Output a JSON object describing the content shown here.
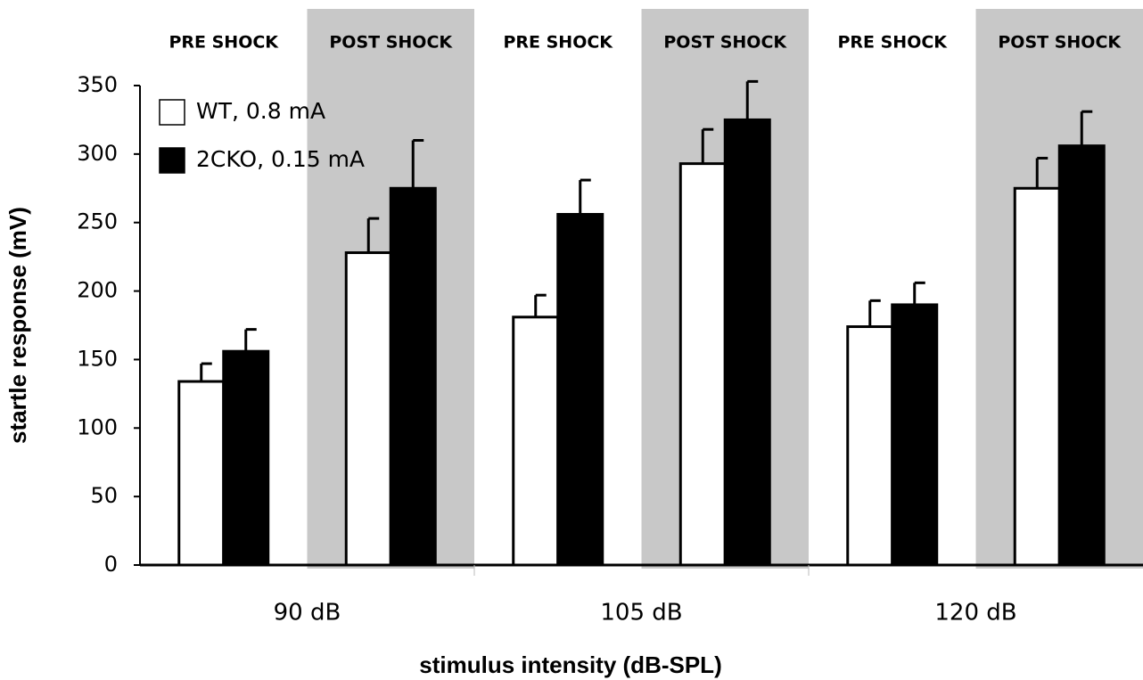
{
  "chart_data": {
    "type": "bar",
    "y_label": "startle response (mV)",
    "x_label": "stimulus intensity (dB-SPL)",
    "groups": [
      "90 dB",
      "105 dB",
      "120 dB"
    ],
    "categories": [
      "PRE SHOCK",
      "POST SHOCK",
      "PRE SHOCK",
      "POST SHOCK",
      "PRE SHOCK",
      "POST SHOCK"
    ],
    "shaded": [
      false,
      true,
      false,
      true,
      false,
      true
    ],
    "shade_color": "#c8c8c8",
    "series": [
      {
        "name": "WT, 0.8 mA",
        "color": "#ffffff",
        "values": [
          134,
          228,
          181,
          293,
          174,
          275
        ],
        "errors": [
          13,
          25,
          16,
          25,
          19,
          22
        ]
      },
      {
        "name": "2CKO, 0.15 mA",
        "color": "#000000",
        "values": [
          156,
          275,
          256,
          325,
          190,
          306
        ],
        "errors": [
          16,
          35,
          25,
          28,
          16,
          25
        ]
      }
    ],
    "ylim": [
      0,
      350
    ],
    "yticks": [
      0,
      50,
      100,
      150,
      200,
      250,
      300,
      350
    ],
    "grid": false,
    "legend": "top-left"
  }
}
